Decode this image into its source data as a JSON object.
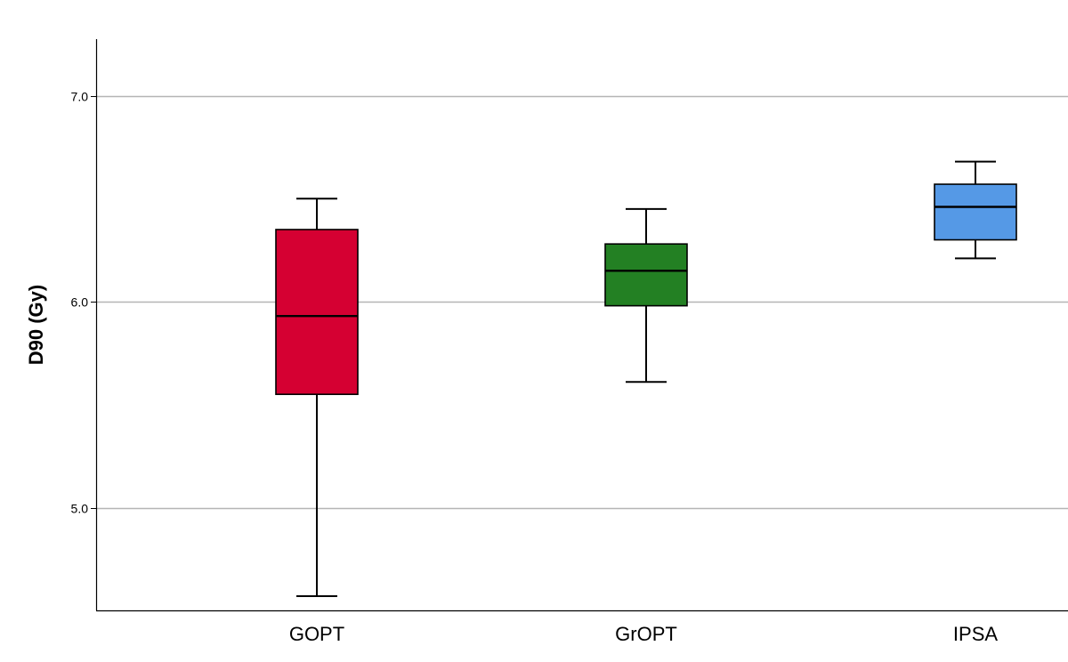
{
  "chart_data": {
    "type": "box",
    "title": "",
    "xlabel": "",
    "ylabel": "D90 (Gy)",
    "ylim": [
      4.5,
      7.3
    ],
    "yticks": [
      5.0,
      6.0,
      7.0
    ],
    "ytick_labels": [
      "5.0",
      "6.0",
      "7.0"
    ],
    "grid": true,
    "categories": [
      "GOPT",
      "GrOPT",
      "IPSA"
    ],
    "boxes": [
      {
        "category": "GOPT",
        "min": 4.57,
        "q1": 5.55,
        "median": 5.93,
        "q3": 6.35,
        "max": 6.5,
        "color": "#d50032"
      },
      {
        "category": "GrOPT",
        "min": 5.61,
        "q1": 5.98,
        "median": 6.15,
        "q3": 6.28,
        "max": 6.45,
        "color": "#238023"
      },
      {
        "category": "IPSA",
        "min": 6.21,
        "q1": 6.3,
        "median": 6.46,
        "q3": 6.57,
        "max": 6.68,
        "color": "#5599e6"
      }
    ]
  }
}
